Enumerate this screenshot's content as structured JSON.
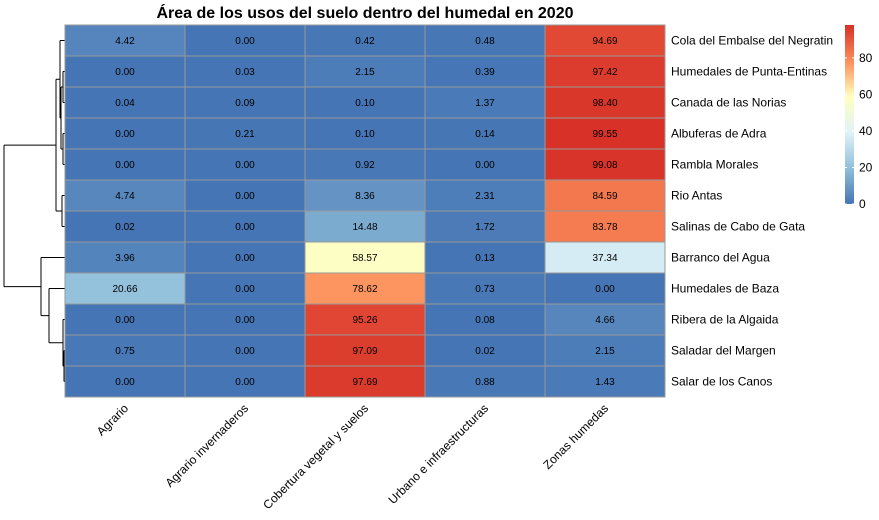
{
  "chart_data": {
    "type": "heatmap",
    "title": "Área de los usos del suelo dentro del humedal en 2020",
    "columns": [
      "Agrario",
      "Agrario invernaderos",
      "Cobertura vegetal y suelos",
      "Urbano e infraestructuras",
      "Zonas humedas"
    ],
    "rows": [
      "Cola del Embalse del Negratin",
      "Humedales de Punta-Entinas",
      "Canada de las Norias",
      "Albuferas de Adra",
      "Rambla Morales",
      "Rio Antas",
      "Salinas de Cabo de Gata",
      "Barranco del Agua",
      "Humedales de Baza",
      "Ribera de la Algaida",
      "Saladar del Margen",
      "Salar de los Canos"
    ],
    "cell_labels": [
      [
        "4.42",
        "0.00",
        "0.42",
        "0.48",
        "94.69"
      ],
      [
        "0.00",
        "0.03",
        "2.15",
        "0.39",
        "97.42"
      ],
      [
        "0.04",
        "0.09",
        "0.10",
        "1.37",
        "98.40"
      ],
      [
        "0.00",
        "0.21",
        "0.10",
        "0.14",
        "99.55"
      ],
      [
        "0.00",
        "0.00",
        "0.92",
        "0.00",
        "99.08"
      ],
      [
        "4.74",
        "0.00",
        "8.36",
        "2.31",
        "84.59"
      ],
      [
        "0.02",
        "0.00",
        "14.48",
        "1.72",
        "83.78"
      ],
      [
        "3.96",
        "0.00",
        "58.57",
        "0.13",
        "37.34"
      ],
      [
        "20.66",
        "0.00",
        "78.62",
        "0.73",
        "0.00"
      ],
      [
        "0.00",
        "0.00",
        "95.26",
        "0.08",
        "4.66"
      ],
      [
        "0.75",
        "0.00",
        "97.09",
        "0.02",
        "2.15"
      ],
      [
        "0.00",
        "0.00",
        "97.69",
        "0.88",
        "1.43"
      ]
    ],
    "values": [
      [
        4.42,
        0.0,
        0.42,
        0.48,
        94.69
      ],
      [
        0.0,
        0.03,
        2.15,
        0.39,
        97.42
      ],
      [
        0.04,
        0.09,
        0.1,
        1.37,
        98.4
      ],
      [
        0.0,
        0.21,
        0.1,
        0.14,
        99.55
      ],
      [
        0.0,
        0.0,
        0.92,
        0.0,
        99.08
      ],
      [
        4.74,
        0.0,
        8.36,
        2.31,
        84.59
      ],
      [
        0.02,
        0.0,
        14.48,
        1.72,
        83.78
      ],
      [
        3.96,
        0.0,
        58.57,
        0.13,
        37.34
      ],
      [
        20.66,
        0.0,
        78.62,
        0.73,
        0.0
      ],
      [
        0.0,
        0.0,
        95.26,
        0.08,
        4.66
      ],
      [
        0.75,
        0.0,
        97.09,
        0.02,
        2.15
      ],
      [
        0.0,
        0.0,
        97.69,
        0.88,
        1.43
      ]
    ],
    "color_scale": {
      "min": 0,
      "max": 100,
      "colors": [
        "#4575b4",
        "#91bfdb",
        "#e0f3f8",
        "#ffffbf",
        "#fc8d59",
        "#d73027"
      ],
      "ticks": [
        0,
        20,
        40,
        60,
        80
      ]
    },
    "row_dendrogram": true,
    "legend_position": "right",
    "grid_color": "#999999"
  }
}
